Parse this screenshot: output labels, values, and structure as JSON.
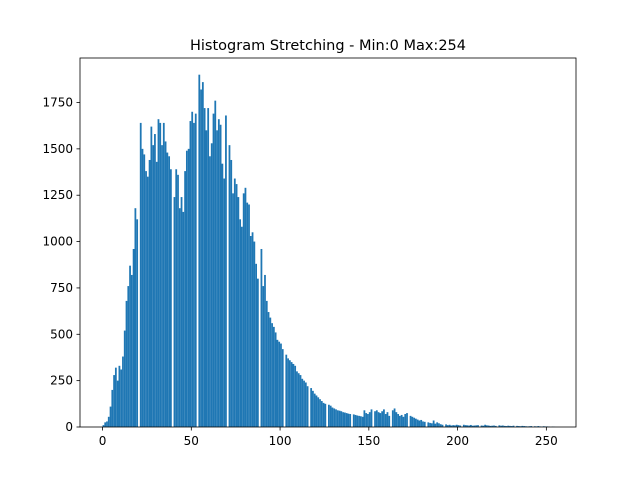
{
  "chart_data": {
    "type": "bar",
    "title": "Histogram Stretching - Min:0 Max:254",
    "xlabel": "",
    "ylabel": "",
    "xlim": [
      -12.7,
      266.7
    ],
    "ylim": [
      0,
      1990
    ],
    "xticks": [
      0,
      50,
      100,
      150,
      200,
      250
    ],
    "yticks": [
      0,
      250,
      500,
      750,
      1000,
      1250,
      1500,
      1750
    ],
    "bar_color": "#1f77b4",
    "bin_start": 0,
    "bin_width": 1,
    "values": [
      10,
      25,
      30,
      55,
      110,
      200,
      280,
      320,
      250,
      330,
      310,
      380,
      520,
      680,
      760,
      870,
      820,
      960,
      1180,
      1120,
      0,
      1640,
      1500,
      1470,
      1380,
      1350,
      1440,
      1620,
      1520,
      1580,
      1430,
      1660,
      1640,
      1520,
      1640,
      1540,
      1480,
      1460,
      1390,
      0,
      1240,
      1390,
      1360,
      1180,
      1240,
      1160,
      1380,
      1490,
      1500,
      1650,
      1700,
      1640,
      1690,
      0,
      1900,
      1820,
      1860,
      1720,
      1600,
      1720,
      1460,
      1530,
      1690,
      1760,
      1600,
      1660,
      1630,
      1420,
      1340,
      1680,
      0,
      1520,
      1440,
      1260,
      1340,
      1310,
      1240,
      1120,
      1080,
      1260,
      1290,
      1210,
      1200,
      1030,
      1050,
      1000,
      880,
      800,
      0,
      960,
      760,
      820,
      680,
      620,
      590,
      560,
      540,
      510,
      470,
      460,
      450,
      420,
      0,
      390,
      370,
      360,
      350,
      340,
      330,
      300,
      290,
      280,
      260,
      250,
      240,
      220,
      0,
      210,
      195,
      180,
      170,
      160,
      150,
      140,
      130,
      125,
      0,
      120,
      115,
      105,
      100,
      95,
      90,
      88,
      85,
      80,
      78,
      75,
      72,
      70,
      0,
      68,
      65,
      62,
      60,
      58,
      55,
      90,
      75,
      70,
      80,
      95,
      0,
      85,
      90,
      80,
      75,
      85,
      95,
      70,
      80,
      60,
      0,
      90,
      100,
      80,
      70,
      60,
      65,
      55,
      70,
      75,
      0,
      60,
      55,
      50,
      45,
      40,
      35,
      38,
      30,
      28,
      0,
      25,
      22,
      20,
      35,
      18,
      25,
      20,
      15,
      12,
      0,
      14,
      10,
      12,
      8,
      10,
      9,
      12,
      10,
      8,
      0,
      12,
      10,
      9,
      8,
      11,
      7,
      8,
      9,
      10,
      0,
      8,
      7,
      12,
      9,
      8,
      6,
      7,
      8,
      6,
      0,
      9,
      7,
      8,
      6,
      5,
      7,
      6,
      5,
      7,
      0,
      6,
      5,
      4,
      6,
      5,
      4,
      3,
      4,
      5,
      0,
      4,
      3,
      5,
      3,
      2,
      4,
      3,
      3,
      2,
      0,
      2,
      1
    ]
  }
}
